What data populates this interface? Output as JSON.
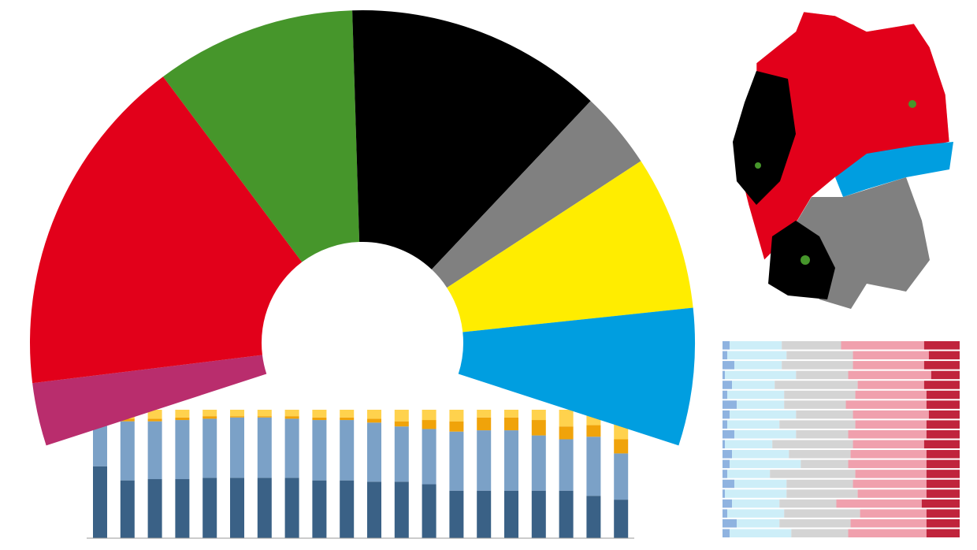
{
  "chart_data": [
    {
      "type": "pie",
      "values": [
        11,
        60,
        35,
        45,
        13.5,
        27,
        24
      ],
      "colors": [
        "#b92d6d",
        "#e2001a",
        "#46962b",
        "#000000",
        "#808080",
        "#ffed00",
        "#009ee0"
      ]
    },
    {
      "type": "bar",
      "stacked": true,
      "categories": [
        null,
        null,
        null,
        null,
        null,
        null,
        null,
        null,
        null,
        null,
        null,
        null,
        null,
        null,
        null,
        null,
        null,
        null,
        null,
        null
      ],
      "ylim": [
        0,
        100
      ],
      "series": [
        {
          "color": "#3a6186",
          "values": [
            56,
            45,
            46,
            46,
            47,
            47,
            47,
            47,
            45,
            45,
            44,
            44,
            42,
            37,
            37,
            37,
            37,
            37,
            33,
            30
          ]
        },
        {
          "color": "#7ba1c7",
          "values": [
            35,
            46,
            45,
            46,
            46,
            47,
            47,
            46,
            47,
            47,
            46,
            43,
            43,
            46,
            47,
            47,
            43,
            40,
            46,
            36
          ]
        },
        {
          "color": "#f0a30a",
          "values": [
            2,
            2,
            2,
            2,
            2,
            1,
            1,
            2,
            2,
            2,
            3,
            4,
            7,
            8,
            10,
            10,
            12,
            10,
            9,
            11
          ]
        },
        {
          "color": "#ffd24d",
          "values": [
            7,
            7,
            7,
            6,
            5,
            5,
            5,
            5,
            6,
            6,
            7,
            9,
            8,
            9,
            6,
            6,
            8,
            13,
            12,
            23
          ]
        }
      ]
    },
    {
      "type": "bar",
      "orientation": "horizontal",
      "stacked": true,
      "categories": [
        null,
        null,
        null,
        null,
        null,
        null,
        null,
        null,
        null,
        null,
        null,
        null,
        null,
        null,
        null,
        null,
        null,
        null,
        null,
        null
      ],
      "xlim": [
        0,
        100
      ],
      "series": [
        {
          "color": "#8fb3e0",
          "values": [
            3,
            2,
            5,
            1,
            4,
            2,
            6,
            3,
            2,
            5,
            1,
            4,
            3,
            2,
            5,
            1,
            4,
            2,
            6,
            3
          ]
        },
        {
          "color": "#cdeef8",
          "values": [
            22,
            25,
            20,
            30,
            18,
            24,
            20,
            28,
            22,
            26,
            20,
            24,
            30,
            18,
            22,
            26,
            20,
            24,
            18,
            26
          ]
        },
        {
          "color": "#d4d4d4",
          "values": [
            25,
            28,
            30,
            22,
            35,
            30,
            26,
            24,
            32,
            22,
            34,
            26,
            20,
            36,
            28,
            30,
            24,
            32,
            30,
            24
          ]
        },
        {
          "color": "#f0a0ad",
          "values": [
            35,
            32,
            30,
            35,
            28,
            30,
            34,
            32,
            30,
            33,
            30,
            32,
            33,
            30,
            31,
            29,
            36,
            28,
            32,
            33
          ]
        },
        {
          "color": "#c0243c",
          "values": [
            15,
            13,
            15,
            12,
            15,
            14,
            14,
            13,
            14,
            14,
            15,
            14,
            14,
            14,
            14,
            14,
            16,
            14,
            14,
            14
          ]
        }
      ]
    }
  ]
}
